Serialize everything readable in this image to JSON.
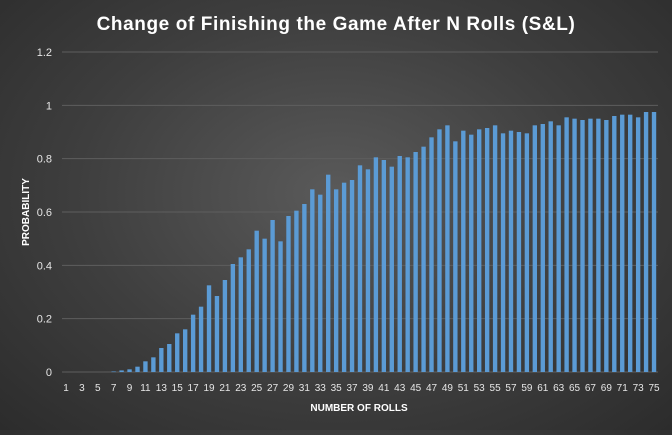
{
  "chart_data": {
    "type": "bar",
    "title": "Change of Finishing the Game After N Rolls (S&L)",
    "xlabel": "NUMBER OF ROLLS",
    "ylabel": "PROBABILITY",
    "ylim": [
      0,
      1.2
    ],
    "yticks": [
      "0",
      "0.2",
      "0.4",
      "0.6",
      "0.8",
      "1",
      "1.2"
    ],
    "grid": true,
    "legend": "none",
    "bar_color": "#5b9bd5",
    "categories": [
      1,
      2,
      3,
      4,
      5,
      6,
      7,
      8,
      9,
      10,
      11,
      12,
      13,
      14,
      15,
      16,
      17,
      18,
      19,
      20,
      21,
      22,
      23,
      24,
      25,
      26,
      27,
      28,
      29,
      30,
      31,
      32,
      33,
      34,
      35,
      36,
      37,
      38,
      39,
      40,
      41,
      42,
      43,
      44,
      45,
      46,
      47,
      48,
      49,
      50,
      51,
      52,
      53,
      54,
      55,
      56,
      57,
      58,
      59,
      60,
      61,
      62,
      63,
      64,
      65,
      66,
      67,
      68,
      69,
      70,
      71,
      72,
      73,
      74,
      75
    ],
    "xtick_labels": [
      "1",
      "3",
      "5",
      "7",
      "9",
      "11",
      "13",
      "15",
      "17",
      "19",
      "21",
      "23",
      "25",
      "27",
      "29",
      "31",
      "33",
      "35",
      "37",
      "39",
      "41",
      "43",
      "45",
      "47",
      "49",
      "51",
      "53",
      "55",
      "57",
      "59",
      "61",
      "63",
      "65",
      "67",
      "69",
      "71",
      "73",
      "75"
    ],
    "values": [
      0,
      0,
      0,
      0,
      0,
      0,
      0.002,
      0.006,
      0.01,
      0.02,
      0.04,
      0.055,
      0.09,
      0.105,
      0.145,
      0.16,
      0.215,
      0.245,
      0.325,
      0.285,
      0.345,
      0.405,
      0.43,
      0.46,
      0.53,
      0.5,
      0.57,
      0.49,
      0.585,
      0.605,
      0.63,
      0.685,
      0.665,
      0.74,
      0.685,
      0.71,
      0.72,
      0.775,
      0.76,
      0.805,
      0.795,
      0.77,
      0.81,
      0.805,
      0.825,
      0.845,
      0.88,
      0.91,
      0.925,
      0.865,
      0.905,
      0.89,
      0.91,
      0.915,
      0.925,
      0.895,
      0.905,
      0.9,
      0.895,
      0.925,
      0.93,
      0.94,
      0.925,
      0.955,
      0.95,
      0.945,
      0.95,
      0.95,
      0.945,
      0.96,
      0.965,
      0.965,
      0.955,
      0.975,
      0.975
    ]
  }
}
